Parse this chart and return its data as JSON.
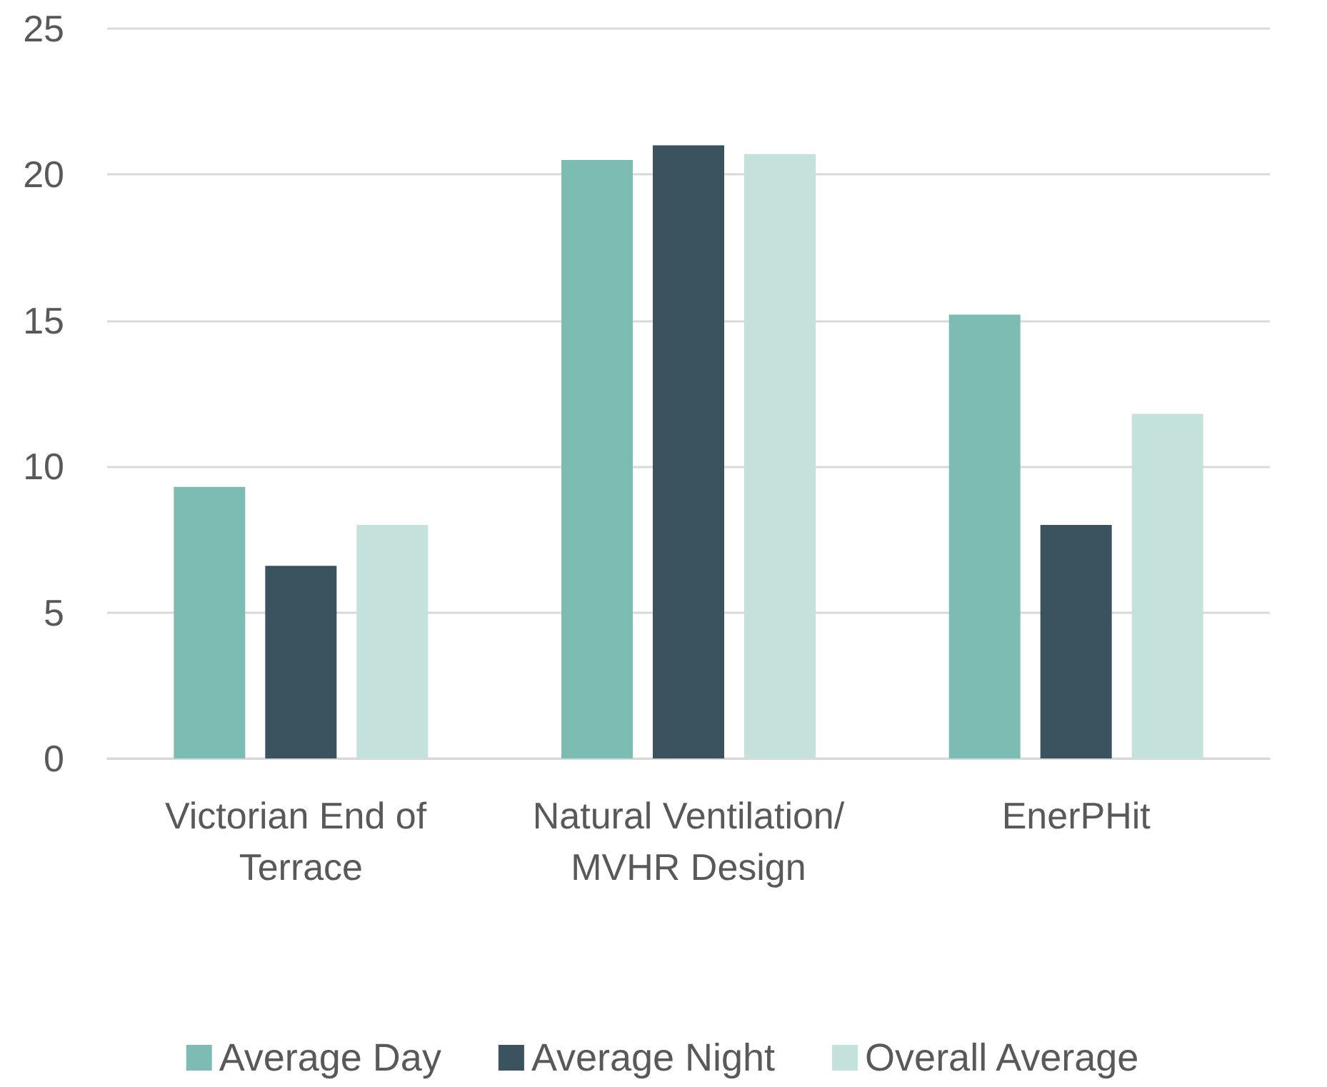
{
  "chart_data": {
    "type": "bar",
    "categories": [
      "Victorian End of Terrace",
      "Natural Ventilation/MVHR Design",
      "EnerPHit"
    ],
    "series": [
      {
        "name": "Average Day",
        "color": "#7dbcb2",
        "values": [
          9.3,
          20.5,
          15.2
        ]
      },
      {
        "name": "Average Night",
        "color": "#3b535e",
        "values": [
          6.6,
          21.0,
          8.0
        ]
      },
      {
        "name": "Overall Average",
        "color": "#c4e1dc",
        "values": [
          8.0,
          20.7,
          11.8
        ]
      }
    ],
    "ylim": [
      0,
      25
    ],
    "yticks": [
      0,
      5,
      10,
      15,
      20,
      25
    ],
    "grid": "y",
    "legend": "bottom"
  }
}
